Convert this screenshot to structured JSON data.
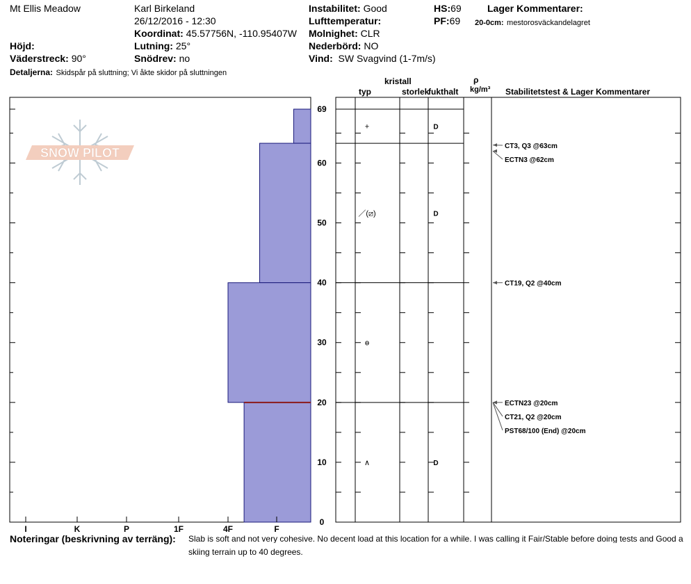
{
  "header": {
    "location": "Mt Ellis Meadow",
    "observer": "Karl Birkeland",
    "datetime": "26/12/2016 - 12:30",
    "coord_label": "Koordinat:",
    "coord_value": "45.57756N, -110.95407W",
    "hojd_label": "Höjd:",
    "hojd_value": "",
    "aspect_label": "Väderstreck:",
    "aspect_value": "90°",
    "slope_label": "Lutning:",
    "slope_value": "25°",
    "drift_label": "Snödrev:",
    "drift_value": "no",
    "details_label": "Detaljerna:",
    "details_value": "Skidspår på sluttning;  Vi åkte skidor på sluttningen",
    "instab_label": "Instabilitet:",
    "instab_value": "Good",
    "airtemp_label": "Lufttemperatur:",
    "airtemp_value": "",
    "cloud_label": "Molnighet:",
    "cloud_value": "CLR",
    "precip_label": "Nederbörd:",
    "precip_value": "NO",
    "wind_label": "Vind:",
    "wind_value": "SW  Svagvind (1-7m/s)",
    "hs_label": "HS:",
    "hs_value": "69",
    "pf_label": "PF:",
    "pf_value": "69",
    "layer_comments_label": "Lager Kommentarer:",
    "layer_comment_depth": "20-0cm:",
    "layer_comment_text": "mestorosväckandelagret"
  },
  "columns": {
    "kristall": "kristall",
    "typ": "typ",
    "storlek": "storlek",
    "fukthalt": "fukthalt",
    "rho": "ρ",
    "density_unit": "kg/m³",
    "stability": "Stabilitetstest & Lager Kommentarer"
  },
  "chart_data": {
    "type": "snow-profile",
    "depth_axis": {
      "min": 0,
      "max": 69,
      "ticks": [
        "0",
        "10",
        "20",
        "30",
        "40",
        "50",
        "60",
        "69"
      ]
    },
    "hardness_axis": [
      "I",
      "K",
      "P",
      "1F",
      "4F",
      "F"
    ],
    "hardness_scale_positions": {
      "I": 0,
      "K": 1,
      "P": 2,
      "1F": 3,
      "4F": 4,
      "F": 5
    },
    "layers": [
      {
        "top": 69,
        "bottom": 63.3,
        "hardness_level": 5.35,
        "crystal": "+",
        "moisture": "D"
      },
      {
        "top": 63.3,
        "bottom": 40,
        "hardness_level": 4.65,
        "crystal": "／(⧄)",
        "moisture": "D"
      },
      {
        "top": 40,
        "bottom": 20,
        "hardness_level": 4.0,
        "crystal": "ɵ",
        "moisture": ""
      },
      {
        "top": 20,
        "bottom": 0,
        "hardness_level": 4.33,
        "crystal": "∧",
        "moisture": "D"
      }
    ],
    "weak_layer_depth": 20,
    "stability_tests": [
      {
        "label": "CT3, Q3 @63cm",
        "depth": 63
      },
      {
        "label": "ECTN3 @62cm",
        "depth": 62
      },
      {
        "label": "CT19, Q2 @40cm",
        "depth": 40
      },
      {
        "label": "ECTN23 @20cm",
        "depth": 20
      },
      {
        "label": "CT21, Q2 @20cm",
        "depth": 20
      },
      {
        "label": "PST68/100 (End) @20cm",
        "depth": 20
      }
    ],
    "colors": {
      "layer_fill": "#9b9bd8",
      "weak_layer": "#8b1a1a",
      "logo": "#f2c9b8"
    }
  },
  "logo_text": "SNOW PILOT",
  "notes": {
    "label": "Noteringar (beskrivning av terräng):",
    "line1": "Slab is soft and not very cohesive.   No decent load at this location for a while.   I was calling it Fair/Stable before doing tests and Good a",
    "line2": "skiing terrain up to 40 degrees."
  }
}
